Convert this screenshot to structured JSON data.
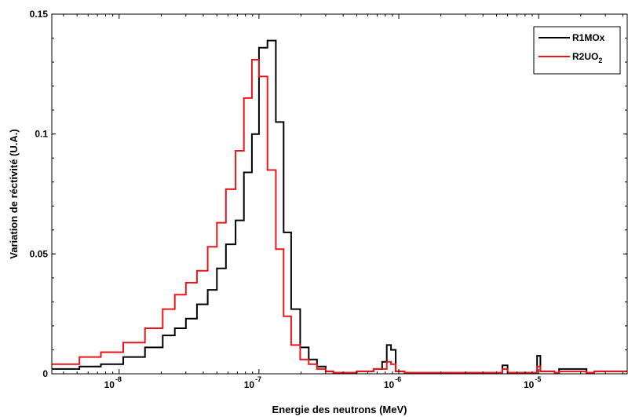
{
  "chart_data": {
    "type": "line",
    "step": true,
    "xscale": "log",
    "xlabel": "Energie des neutrons (MeV)",
    "ylabel": "Variation de réctivité (U.A.)",
    "xlim": [
      3.3e-09,
      4.3e-05
    ],
    "ylim": [
      0,
      0.15
    ],
    "yticks": [
      0,
      0.05,
      0.1,
      0.15
    ],
    "ytick_labels": [
      "0",
      "0.05",
      "0.1",
      "0.15"
    ],
    "xticks": [
      {
        "value": 1e-08,
        "base": "10",
        "exp": "-8"
      },
      {
        "value": 1e-07,
        "base": "10",
        "exp": "-7"
      },
      {
        "value": 1e-06,
        "base": "10",
        "exp": "-6"
      },
      {
        "value": 1e-05,
        "base": "10",
        "exp": "-5"
      }
    ],
    "legend": {
      "position": "top-right"
    },
    "bin_edges": [
      3.3e-09,
      5.2e-09,
      7.4e-09,
      1.07e-08,
      1.53e-08,
      2.05e-08,
      2.5e-08,
      3e-08,
      3.6e-08,
      4.3e-08,
      5e-08,
      5.8e-08,
      6.8e-08,
      7.8e-08,
      8.9e-08,
      1e-07,
      1.15e-07,
      1.32e-07,
      1.5e-07,
      1.7e-07,
      1.97e-07,
      2.27e-07,
      2.6e-07,
      3e-07,
      3.4e-07,
      3.9e-07,
      4.4e-07,
      5e-07,
      5.8e-07,
      6.6e-07,
      7.6e-07,
      8.2e-07,
      8.8e-07,
      9.5e-07,
      1.1e-06,
      5e-06,
      5.5e-06,
      6e-06,
      9.4e-06,
      9.75e-06,
      1.03e-05,
      1.3e-05,
      1.4e-05,
      2.2e-05,
      2.5e-05,
      4.3e-05
    ],
    "series": [
      {
        "name": "R1MOx",
        "color": "#000000",
        "values": [
          0.002,
          0.003,
          0.004,
          0.007,
          0.011,
          0.016,
          0.019,
          0.023,
          0.029,
          0.035,
          0.044,
          0.054,
          0.064,
          0.084,
          0.1,
          0.136,
          0.139,
          0.105,
          0.059,
          0.027,
          0.011,
          0.006,
          0.003,
          0.001,
          0.0005,
          0.0005,
          0.0005,
          0.001,
          0.001,
          0.002,
          0.005,
          0.012,
          0.01,
          0.001,
          0.0005,
          0.0005,
          0.0035,
          0.0005,
          0.0005,
          0.0075,
          0.001,
          0.0005,
          0.002,
          0.0005,
          0.001
        ]
      },
      {
        "name": "R2UO",
        "name_sub": "2",
        "color": "#e8161b",
        "values": [
          0.004,
          0.007,
          0.009,
          0.013,
          0.019,
          0.027,
          0.033,
          0.038,
          0.043,
          0.053,
          0.063,
          0.077,
          0.093,
          0.115,
          0.131,
          0.124,
          0.085,
          0.052,
          0.024,
          0.012,
          0.006,
          0.004,
          0.002,
          0.001,
          0.0005,
          0.0005,
          0.0005,
          0.001,
          0.001,
          0.002,
          0.002,
          0.005,
          0.004,
          0.001,
          0.0005,
          0.0005,
          0.002,
          0.0005,
          0.0005,
          0.003,
          0.001,
          0.0005,
          0.001,
          0.0005,
          0.001
        ]
      }
    ]
  }
}
